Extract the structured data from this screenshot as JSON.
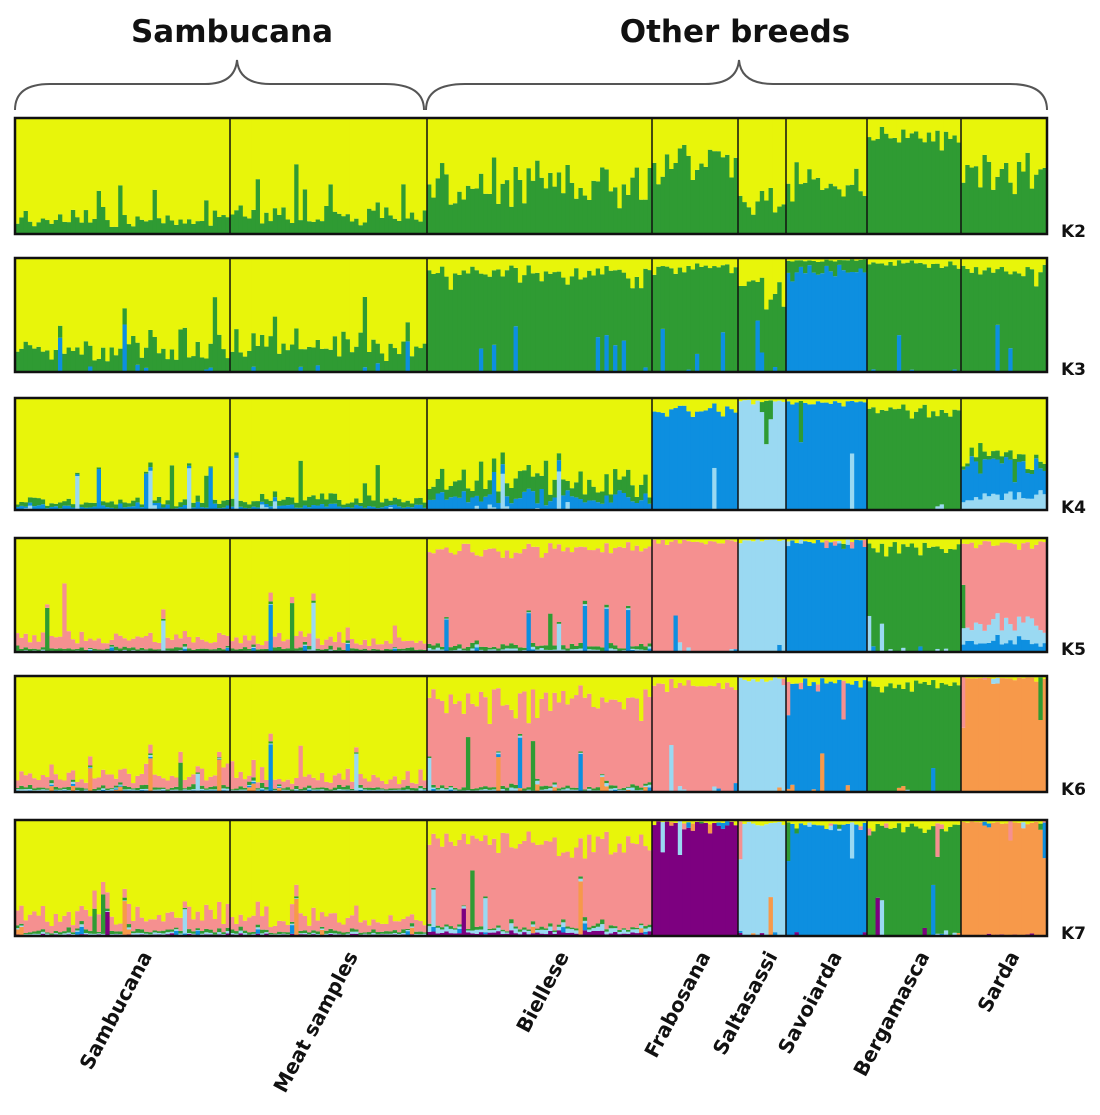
{
  "chart_data": {
    "type": "bar",
    "stacked": true,
    "group_headers": [
      "Sambucana",
      "Other breeds"
    ],
    "populations": [
      {
        "name": "Sambucana",
        "n": 50
      },
      {
        "name": "Meat samples",
        "n": 46
      },
      {
        "name": "Biellese",
        "n": 52
      },
      {
        "name": "Frabosana",
        "n": 20
      },
      {
        "name": "Saltasassi",
        "n": 11
      },
      {
        "name": "Savoiarda",
        "n": 19
      },
      {
        "name": "Bergamasca",
        "n": 22
      },
      {
        "name": "Sarda",
        "n": 20
      }
    ],
    "colors": {
      "yellow": "#e8f50a",
      "green": "#2f9b33",
      "blue": "#0d8fe0",
      "lightblue": "#9ad9f2",
      "pink": "#f59090",
      "orange": "#f7994a",
      "purple": "#7d0080"
    },
    "panels": [
      {
        "k": "K2",
        "clusters": [
          "yellow",
          "green"
        ],
        "mean_ancestry": [
          [
            0.88,
            0.12
          ],
          [
            0.86,
            0.14
          ],
          [
            0.6,
            0.4
          ],
          [
            0.42,
            0.58
          ],
          [
            0.75,
            0.25
          ],
          [
            0.62,
            0.38
          ],
          [
            0.15,
            0.85
          ],
          [
            0.48,
            0.52
          ]
        ]
      },
      {
        "k": "K3",
        "clusters": [
          "yellow",
          "green",
          "blue"
        ],
        "mean_ancestry": [
          [
            0.8,
            0.2,
            0.0
          ],
          [
            0.78,
            0.22,
            0.0
          ],
          [
            0.15,
            0.85,
            0.0
          ],
          [
            0.1,
            0.9,
            0.0
          ],
          [
            0.3,
            0.7,
            0.0
          ],
          [
            0.02,
            0.08,
            0.9
          ],
          [
            0.05,
            0.95,
            0.0
          ],
          [
            0.12,
            0.88,
            0.0
          ]
        ]
      },
      {
        "k": "K4",
        "clusters": [
          "yellow",
          "green",
          "blue",
          "lightblue"
        ],
        "mean_ancestry": [
          [
            0.93,
            0.04,
            0.03,
            0.0
          ],
          [
            0.92,
            0.05,
            0.03,
            0.0
          ],
          [
            0.78,
            0.12,
            0.1,
            0.0
          ],
          [
            0.12,
            0.0,
            0.88,
            0.0
          ],
          [
            0.03,
            0.0,
            0.0,
            0.97
          ],
          [
            0.05,
            0.0,
            0.95,
            0.0
          ],
          [
            0.1,
            0.9,
            0.0,
            0.0
          ],
          [
            0.55,
            0.05,
            0.28,
            0.12
          ]
        ]
      },
      {
        "k": "K5",
        "clusters": [
          "yellow",
          "pink",
          "green",
          "lightblue",
          "blue"
        ],
        "mean_ancestry": [
          [
            0.88,
            0.09,
            0.02,
            0.01,
            0.0
          ],
          [
            0.9,
            0.07,
            0.02,
            0.01,
            0.0
          ],
          [
            0.1,
            0.85,
            0.03,
            0.02,
            0.0
          ],
          [
            0.03,
            0.97,
            0.0,
            0.0,
            0.0
          ],
          [
            0.02,
            0.0,
            0.0,
            0.98,
            0.0
          ],
          [
            0.03,
            0.0,
            0.0,
            0.0,
            0.97
          ],
          [
            0.08,
            0.0,
            0.92,
            0.0,
            0.0
          ],
          [
            0.05,
            0.72,
            0.0,
            0.15,
            0.08
          ]
        ]
      },
      {
        "k": "K6",
        "clusters": [
          "yellow",
          "pink",
          "green",
          "lightblue",
          "blue",
          "orange"
        ],
        "mean_ancestry": [
          [
            0.86,
            0.1,
            0.02,
            0.01,
            0.01,
            0.0
          ],
          [
            0.88,
            0.08,
            0.02,
            0.01,
            0.01,
            0.0
          ],
          [
            0.22,
            0.74,
            0.02,
            0.02,
            0.0,
            0.0
          ],
          [
            0.08,
            0.92,
            0.0,
            0.0,
            0.0,
            0.0
          ],
          [
            0.03,
            0.0,
            0.0,
            0.97,
            0.0,
            0.0
          ],
          [
            0.05,
            0.0,
            0.0,
            0.0,
            0.95,
            0.0
          ],
          [
            0.08,
            0.0,
            0.92,
            0.0,
            0.0,
            0.0
          ],
          [
            0.02,
            0.0,
            0.0,
            0.0,
            0.0,
            0.98
          ]
        ]
      },
      {
        "k": "K7",
        "clusters": [
          "yellow",
          "pink",
          "green",
          "lightblue",
          "blue",
          "orange",
          "purple"
        ],
        "mean_ancestry": [
          [
            0.84,
            0.12,
            0.02,
            0.01,
            0.0,
            0.0,
            0.01
          ],
          [
            0.86,
            0.1,
            0.02,
            0.01,
            0.0,
            0.0,
            0.01
          ],
          [
            0.2,
            0.72,
            0.02,
            0.03,
            0.0,
            0.0,
            0.03
          ],
          [
            0.02,
            0.0,
            0.0,
            0.0,
            0.0,
            0.0,
            0.98
          ],
          [
            0.03,
            0.0,
            0.0,
            0.97,
            0.0,
            0.0,
            0.0
          ],
          [
            0.04,
            0.0,
            0.0,
            0.0,
            0.96,
            0.0,
            0.0
          ],
          [
            0.06,
            0.0,
            0.94,
            0.0,
            0.0,
            0.0,
            0.0
          ],
          [
            0.02,
            0.0,
            0.0,
            0.0,
            0.0,
            0.97,
            0.01
          ]
        ]
      }
    ]
  }
}
